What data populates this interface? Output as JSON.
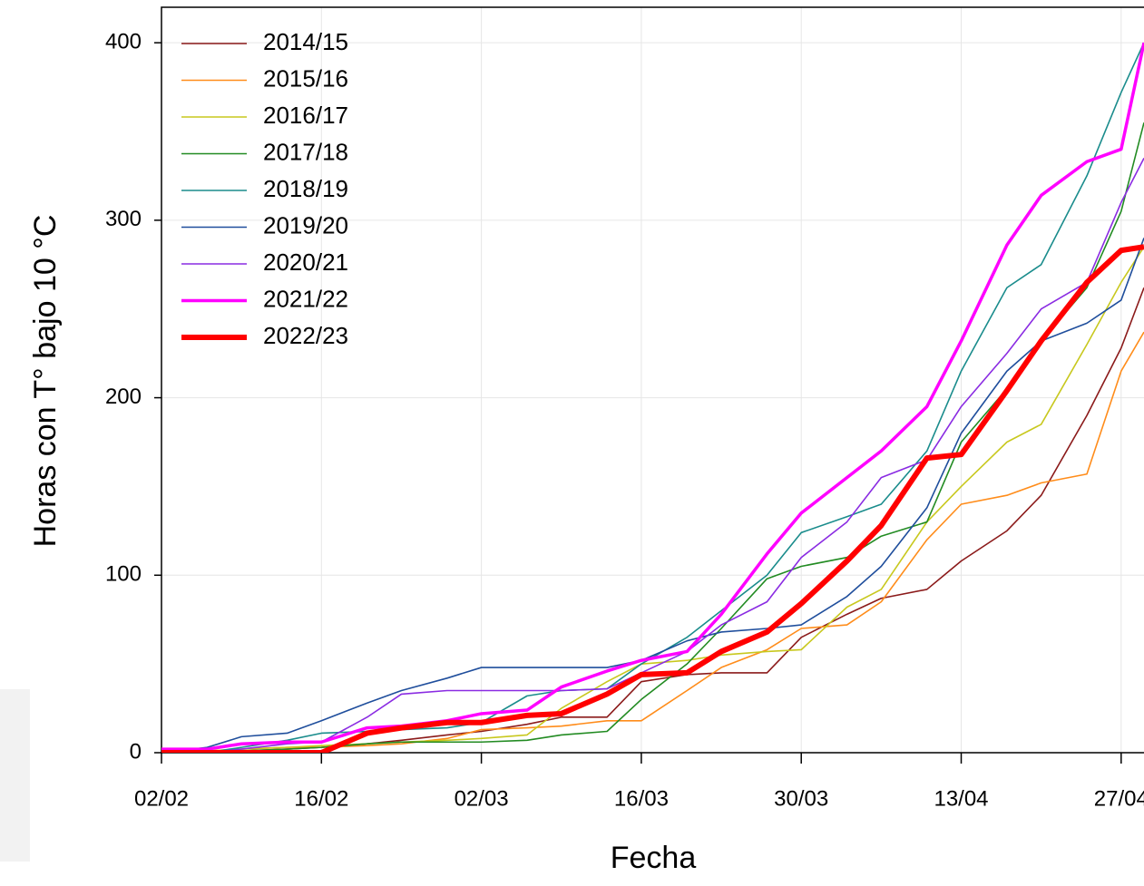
{
  "chart_data": {
    "type": "line",
    "x_label": "Fecha",
    "y_label": "Horas con T° bajo 10 °C",
    "x": [
      "02/02",
      "06/02",
      "09/02",
      "13/02",
      "16/02",
      "20/02",
      "23/02",
      "27/02",
      "02/03",
      "06/03",
      "09/03",
      "13/03",
      "16/03",
      "20/03",
      "23/03",
      "27/03",
      "30/03",
      "03/04",
      "06/04",
      "10/04",
      "13/04",
      "17/04",
      "20/04",
      "24/04",
      "27/04",
      "29/04"
    ],
    "series": [
      {
        "name": "2014/15",
        "color": "#8b1a1a",
        "values": [
          0,
          0,
          1,
          2,
          3,
          5,
          7,
          10,
          12,
          16,
          20,
          20,
          40,
          44,
          45,
          45,
          65,
          78,
          87,
          92,
          108,
          125,
          145,
          190,
          228,
          262
        ]
      },
      {
        "name": "2015/16",
        "color": "#ff8c1a",
        "values": [
          0,
          1,
          2,
          3,
          3,
          4,
          5,
          8,
          13,
          14,
          15,
          18,
          18,
          35,
          48,
          58,
          70,
          72,
          85,
          120,
          140,
          145,
          152,
          157,
          215,
          237
        ]
      },
      {
        "name": "2016/17",
        "color": "#c8c81e",
        "values": [
          0,
          1,
          2,
          3,
          4,
          5,
          6,
          7,
          8,
          10,
          25,
          40,
          50,
          52,
          55,
          57,
          58,
          82,
          92,
          130,
          150,
          175,
          185,
          230,
          265,
          285
        ]
      },
      {
        "name": "2017/18",
        "color": "#228b22",
        "values": [
          0,
          0,
          1,
          2,
          3,
          5,
          6,
          6,
          6,
          7,
          10,
          12,
          30,
          50,
          70,
          98,
          105,
          110,
          122,
          130,
          175,
          205,
          232,
          262,
          305,
          355
        ]
      },
      {
        "name": "2018/19",
        "color": "#1a8c8c",
        "values": [
          0,
          0,
          3,
          7,
          11,
          12,
          13,
          14,
          17,
          32,
          35,
          36,
          50,
          65,
          80,
          100,
          124,
          133,
          140,
          170,
          215,
          262,
          275,
          325,
          372,
          400
        ]
      },
      {
        "name": "2019/20",
        "color": "#1f4e9c",
        "values": [
          0,
          3,
          9,
          11,
          18,
          28,
          35,
          42,
          48,
          48,
          48,
          48,
          52,
          63,
          68,
          70,
          72,
          88,
          105,
          138,
          180,
          215,
          232,
          242,
          255,
          290
        ]
      },
      {
        "name": "2020/21",
        "color": "#8a2be2",
        "values": [
          0,
          0,
          2,
          5,
          6,
          20,
          33,
          35,
          35,
          35,
          35,
          36,
          45,
          57,
          72,
          85,
          110,
          130,
          155,
          165,
          195,
          225,
          250,
          265,
          310,
          335
        ]
      },
      {
        "name": "2021/22",
        "color": "#ff00ff",
        "values": [
          2,
          2,
          5,
          6,
          6,
          14,
          15,
          18,
          22,
          24,
          37,
          46,
          52,
          57,
          78,
          112,
          135,
          155,
          170,
          195,
          232,
          286,
          314,
          333,
          340,
          400
        ]
      },
      {
        "name": "2022/23",
        "color": "#ff0000",
        "values": [
          0,
          0,
          0,
          0,
          0,
          11,
          14,
          17,
          17,
          21,
          22,
          33,
          44,
          45,
          57,
          68,
          84,
          108,
          128,
          166,
          168,
          204,
          232,
          265,
          283,
          285
        ]
      }
    ],
    "xlim": [
      "02/02",
      "29/04"
    ],
    "xticks": [
      "02/02",
      "16/02",
      "02/03",
      "16/03",
      "30/03",
      "13/04",
      "27/04"
    ],
    "ylim": [
      0,
      420
    ],
    "yticks": [
      0,
      100,
      200,
      300,
      400
    ],
    "grid": true,
    "legend": "upper left"
  }
}
